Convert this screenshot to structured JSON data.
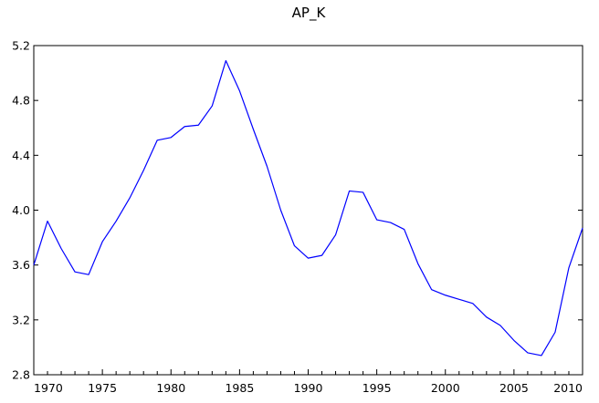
{
  "chart_data": {
    "type": "line",
    "title": "AP_K",
    "xlabel": "",
    "ylabel": "",
    "xlim": [
      1970,
      2010
    ],
    "ylim": [
      2.8,
      5.2
    ],
    "grid": false,
    "legend": "none",
    "x_ticks": [
      "1970",
      "1975",
      "1980",
      "1985",
      "1990",
      "1995",
      "2000",
      "2005",
      "2010"
    ],
    "y_ticks": [
      "2.8",
      "3.2",
      "3.6",
      "4.0",
      "4.4",
      "4.8",
      "5.2"
    ],
    "line_color": "#0000ff",
    "x": [
      1970,
      1971,
      1972,
      1973,
      1974,
      1975,
      1976,
      1977,
      1978,
      1979,
      1980,
      1981,
      1982,
      1983,
      1984,
      1985,
      1986,
      1987,
      1988,
      1989,
      1990,
      1991,
      1992,
      1993,
      1994,
      1995,
      1996,
      1997,
      1998,
      1999,
      2000,
      2001,
      2002,
      2003,
      2004,
      2005,
      2006,
      2007,
      2008,
      2009,
      2010
    ],
    "series": [
      {
        "values": [
          3.6,
          3.92,
          3.72,
          3.55,
          3.53,
          3.77,
          3.92,
          4.09,
          4.29,
          4.51,
          4.53,
          4.61,
          4.62,
          4.76,
          5.09,
          4.87,
          4.59,
          4.32,
          4.0,
          3.74,
          3.65,
          3.67,
          3.82,
          4.14,
          4.13,
          3.93,
          3.91,
          3.86,
          3.61,
          3.42,
          3.38,
          3.35,
          3.32,
          3.22,
          3.16,
          3.05,
          2.96,
          2.94,
          3.11,
          3.58,
          3.87
        ]
      }
    ]
  }
}
